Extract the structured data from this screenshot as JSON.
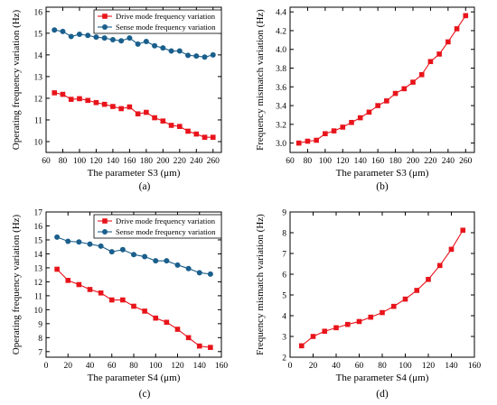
{
  "colors": {
    "red": "#e8141b",
    "blue": "#1a5f8c",
    "axis": "#000000"
  },
  "chart_data": [
    {
      "id": "a",
      "type": "line",
      "panel_label": "(a)",
      "xlabel": "The parameter S3 (μm)",
      "ylabel": "Operating frequency variation (Hz)",
      "xlim": [
        60,
        270
      ],
      "ylim": [
        9.5,
        16.2
      ],
      "xticks": [
        60,
        80,
        100,
        120,
        140,
        160,
        180,
        200,
        220,
        240,
        260
      ],
      "yticks": [
        10,
        11,
        12,
        13,
        14,
        15,
        16
      ],
      "legend": "top-right",
      "series": [
        {
          "name": "Drive mode frequency variation",
          "marker": "square",
          "color": "#e8141b",
          "x": [
            70,
            80,
            90,
            100,
            110,
            120,
            130,
            140,
            150,
            160,
            170,
            180,
            190,
            200,
            210,
            220,
            230,
            240,
            250,
            260
          ],
          "y": [
            12.25,
            12.18,
            11.95,
            11.98,
            11.9,
            11.8,
            11.72,
            11.62,
            11.52,
            11.6,
            11.28,
            11.35,
            11.1,
            10.95,
            10.75,
            10.7,
            10.48,
            10.35,
            10.2,
            10.2
          ]
        },
        {
          "name": "Sense mode frequency variation",
          "marker": "circle",
          "color": "#1a5f8c",
          "x": [
            70,
            80,
            90,
            100,
            110,
            120,
            130,
            140,
            150,
            160,
            170,
            180,
            190,
            200,
            210,
            220,
            230,
            240,
            250,
            260
          ],
          "y": [
            15.15,
            15.08,
            14.85,
            14.95,
            14.9,
            14.82,
            14.78,
            14.7,
            14.65,
            14.78,
            14.5,
            14.62,
            14.42,
            14.32,
            14.18,
            14.18,
            13.98,
            13.95,
            13.9,
            14.0
          ]
        }
      ]
    },
    {
      "id": "b",
      "type": "line",
      "panel_label": "(b)",
      "xlabel": "The parameter S3 (μm)",
      "ylabel": "Frequency mismatch variation (Hz)",
      "xlim": [
        60,
        270
      ],
      "ylim": [
        2.9,
        4.45
      ],
      "xticks": [
        60,
        80,
        100,
        120,
        140,
        160,
        180,
        200,
        220,
        240,
        260
      ],
      "yticks": [
        3.0,
        3.2,
        3.4,
        3.6,
        3.8,
        4.0,
        4.2,
        4.4
      ],
      "ytick_decimals": 1,
      "series": [
        {
          "marker": "square",
          "color": "#e8141b",
          "x": [
            70,
            80,
            90,
            100,
            110,
            120,
            130,
            140,
            150,
            160,
            170,
            180,
            190,
            200,
            210,
            220,
            230,
            240,
            250,
            260
          ],
          "y": [
            3.0,
            3.02,
            3.03,
            3.1,
            3.13,
            3.17,
            3.22,
            3.27,
            3.33,
            3.4,
            3.45,
            3.53,
            3.58,
            3.65,
            3.73,
            3.87,
            3.95,
            4.08,
            4.22,
            4.36
          ]
        }
      ]
    },
    {
      "id": "c",
      "type": "line",
      "panel_label": "(c)",
      "xlabel": "The parameter S4 (μm)",
      "ylabel": "Operating frequency variation (Hz)",
      "xlim": [
        0,
        160
      ],
      "ylim": [
        6.6,
        17
      ],
      "xticks": [
        0,
        20,
        40,
        60,
        80,
        100,
        120,
        140,
        160
      ],
      "yticks": [
        7,
        8,
        9,
        10,
        11,
        12,
        13,
        14,
        15,
        16,
        17
      ],
      "legend": "top-right",
      "series": [
        {
          "name": "Drive mode frequency variation",
          "marker": "square",
          "color": "#e8141b",
          "x": [
            10,
            20,
            30,
            40,
            50,
            60,
            70,
            80,
            90,
            100,
            110,
            120,
            130,
            140,
            150
          ],
          "y": [
            12.9,
            12.1,
            11.8,
            11.45,
            11.2,
            10.7,
            10.7,
            10.25,
            9.9,
            9.4,
            9.1,
            8.6,
            8.0,
            7.4,
            7.3
          ]
        },
        {
          "name": "Sense mode frequency variation",
          "marker": "circle",
          "color": "#1a5f8c",
          "x": [
            10,
            20,
            30,
            40,
            50,
            60,
            70,
            80,
            90,
            100,
            110,
            120,
            130,
            140,
            150
          ],
          "y": [
            15.2,
            14.9,
            14.85,
            14.7,
            14.55,
            14.15,
            14.3,
            13.95,
            13.8,
            13.5,
            13.5,
            13.2,
            12.95,
            12.65,
            12.55
          ]
        }
      ]
    },
    {
      "id": "d",
      "type": "line",
      "panel_label": "(d)",
      "xlabel": "The parameter S4 (μm)",
      "ylabel": "Frequency mismatch variation (Hz)",
      "xlim": [
        0,
        160
      ],
      "ylim": [
        2,
        9
      ],
      "xticks": [
        0,
        20,
        40,
        60,
        80,
        100,
        120,
        140,
        160
      ],
      "yticks": [
        2,
        3,
        4,
        5,
        6,
        7,
        8,
        9
      ],
      "series": [
        {
          "marker": "square",
          "color": "#e8141b",
          "x": [
            10,
            20,
            30,
            40,
            50,
            60,
            70,
            80,
            90,
            100,
            110,
            120,
            130,
            140,
            150
          ],
          "y": [
            2.55,
            3.0,
            3.25,
            3.42,
            3.58,
            3.72,
            3.93,
            4.15,
            4.45,
            4.8,
            5.22,
            5.75,
            6.42,
            7.2,
            8.12
          ]
        }
      ]
    }
  ]
}
